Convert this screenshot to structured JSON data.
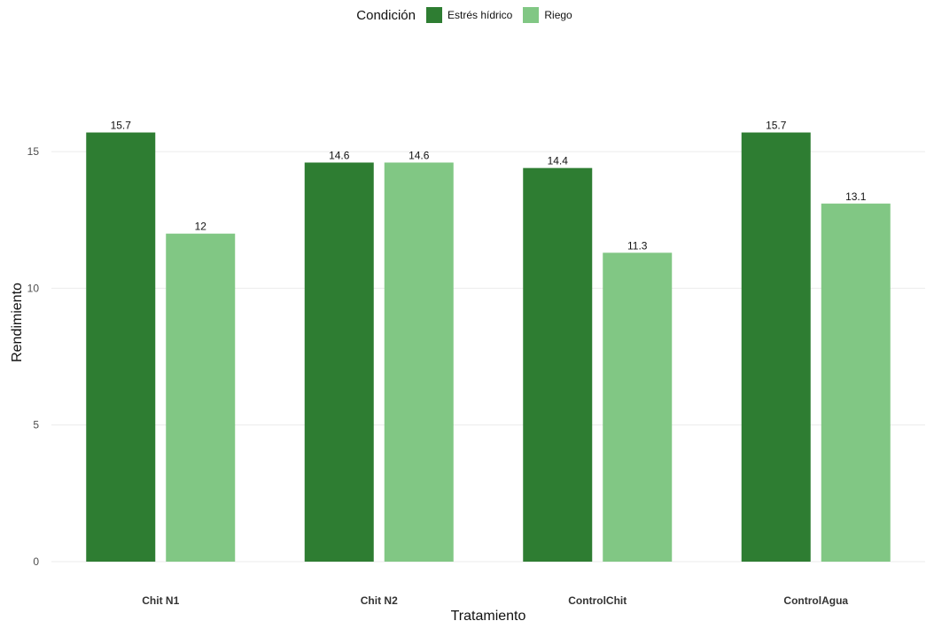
{
  "chart_data": {
    "type": "bar",
    "title": "",
    "xlabel": "Tratamiento",
    "ylabel": "Rendimiento",
    "categories": [
      "Chit N1",
      "Chit N2",
      "ControlChit",
      "ControlAgua"
    ],
    "series": [
      {
        "name": "Estrés hídrico",
        "values": [
          15.7,
          14.6,
          14.4,
          15.7
        ],
        "labels": [
          "15.7",
          "14.6",
          "14.4",
          "15.7"
        ],
        "color": "#2e7d32"
      },
      {
        "name": "Riego",
        "values": [
          12,
          14.6,
          11.3,
          13.1
        ],
        "labels": [
          "12",
          "14.6",
          "11.3",
          "13.1"
        ],
        "color": "#81c784"
      }
    ],
    "ylim": [
      0,
      17.5
    ],
    "yticks": [
      0,
      5,
      10,
      15
    ],
    "ytick_labels": [
      "0",
      "5",
      "10",
      "15"
    ],
    "grid": true,
    "legend": {
      "title": "Condición",
      "position": "top"
    }
  }
}
